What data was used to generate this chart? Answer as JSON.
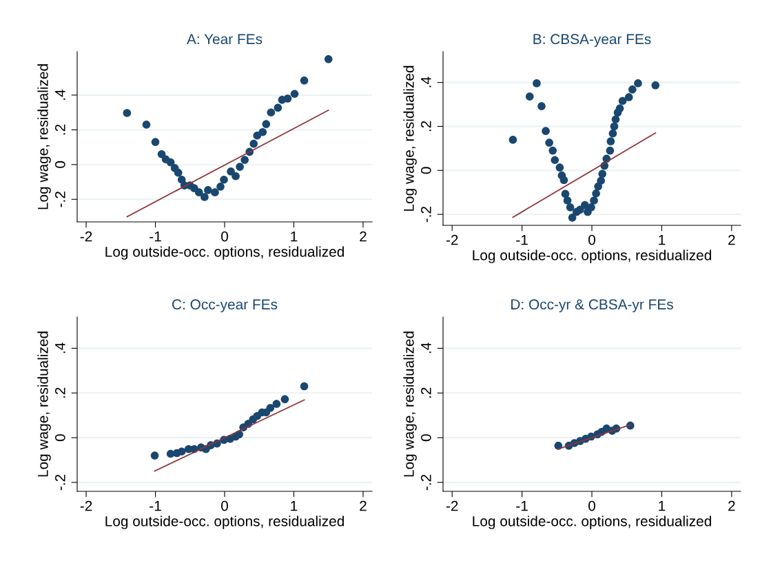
{
  "chart_data": [
    {
      "type": "scatter",
      "title": "A: Year FEs",
      "xlabel": "Log outside-occ. options, residualized",
      "ylabel": "Log wage, residualized",
      "xlim": [
        -2.13,
        2.13
      ],
      "ylim": [
        -0.33,
        0.65
      ],
      "xticks": [
        -2,
        -1,
        0,
        1,
        2
      ],
      "yticks": [
        {
          "value": -0.2,
          "label": "-.2"
        },
        0,
        {
          "value": 0.2,
          "label": ".2"
        },
        {
          "value": 0.4,
          "label": ".4"
        }
      ],
      "grid": "y",
      "legend": false,
      "marker": "circle",
      "series": [
        {
          "color": "#1a476f",
          "x": [
            -1.41,
            -1.13,
            -1.0,
            -0.91,
            -0.85,
            -0.78,
            -0.72,
            -0.67,
            -0.62,
            -0.58,
            -0.5,
            -0.44,
            -0.37,
            -0.29,
            -0.24,
            -0.14,
            -0.06,
            -0.01,
            0.09,
            0.16,
            0.22,
            0.29,
            0.36,
            0.42,
            0.47,
            0.55,
            0.6,
            0.67,
            0.77,
            0.83,
            0.91,
            1.01,
            1.15,
            1.5
          ],
          "values": [
            0.297,
            0.23,
            0.13,
            0.06,
            0.03,
            0.013,
            -0.02,
            -0.047,
            -0.087,
            -0.12,
            -0.12,
            -0.136,
            -0.16,
            -0.187,
            -0.147,
            -0.16,
            -0.127,
            -0.087,
            -0.04,
            -0.067,
            -0.013,
            0.027,
            0.073,
            0.12,
            0.167,
            0.187,
            0.233,
            0.3,
            0.327,
            0.373,
            0.38,
            0.407,
            0.484,
            0.607
          ]
        },
        {
          "type": "line",
          "color": "#90353b",
          "marker": "none",
          "x": [
            -1.41,
            1.5
          ],
          "values": [
            -0.3,
            0.313
          ]
        }
      ]
    },
    {
      "type": "scatter",
      "title": "B: CBSA-year FEs",
      "xlabel": "Log outside-occ. options, residualized",
      "ylabel": "Log wage, residualized",
      "xlim": [
        -2.13,
        2.13
      ],
      "ylim": [
        -0.25,
        0.54
      ],
      "xticks": [
        -2,
        -1,
        0,
        1,
        2
      ],
      "yticks": [
        {
          "value": -0.2,
          "label": "-.2"
        },
        0,
        {
          "value": 0.2,
          "label": ".2"
        },
        {
          "value": 0.4,
          "label": ".4"
        }
      ],
      "grid": "y",
      "legend": false,
      "marker": "circle",
      "series": [
        {
          "color": "#1a476f",
          "x": [
            -1.13,
            -0.89,
            -0.79,
            -0.72,
            -0.66,
            -0.61,
            -0.56,
            -0.53,
            -0.46,
            -0.43,
            -0.4,
            -0.38,
            -0.35,
            -0.31,
            -0.28,
            -0.22,
            -0.17,
            -0.1,
            -0.06,
            -0.01,
            0.03,
            0.06,
            0.09,
            0.13,
            0.15,
            0.18,
            0.21,
            0.26,
            0.27,
            0.3,
            0.32,
            0.34,
            0.37,
            0.4,
            0.44,
            0.53,
            0.58,
            0.66,
            0.91
          ],
          "values": [
            0.139,
            0.336,
            0.396,
            0.292,
            0.179,
            0.126,
            0.09,
            0.047,
            0.013,
            -0.023,
            -0.044,
            -0.107,
            -0.137,
            -0.168,
            -0.215,
            -0.189,
            -0.179,
            -0.158,
            -0.189,
            -0.168,
            -0.137,
            -0.105,
            -0.073,
            -0.047,
            -0.016,
            0.021,
            0.053,
            0.09,
            0.132,
            0.168,
            0.2,
            0.232,
            0.263,
            0.282,
            0.316,
            0.333,
            0.368,
            0.396,
            0.387
          ]
        },
        {
          "type": "line",
          "color": "#90353b",
          "marker": "none",
          "x": [
            -1.13,
            0.91
          ],
          "values": [
            -0.213,
            0.17
          ]
        }
      ]
    },
    {
      "type": "scatter",
      "title": "C: Occ-year FEs",
      "xlabel": "Log outside-occ. options, residualized",
      "ylabel": "Log wage, residualized",
      "xlim": [
        -2.13,
        2.13
      ],
      "ylim": [
        -0.24,
        0.54
      ],
      "xticks": [
        -2,
        -1,
        0,
        1,
        2
      ],
      "yticks": [
        {
          "value": -0.2,
          "label": "-.2"
        },
        0,
        {
          "value": 0.2,
          "label": ".2"
        },
        {
          "value": 0.4,
          "label": ".4"
        }
      ],
      "grid": "y",
      "legend": false,
      "marker": "circle",
      "series": [
        {
          "color": "#1a476f",
          "x": [
            -1.01,
            -0.78,
            -0.69,
            -0.62,
            -0.52,
            -0.44,
            -0.34,
            -0.27,
            -0.2,
            -0.11,
            -0.01,
            0.08,
            0.16,
            0.21,
            0.27,
            0.34,
            0.41,
            0.47,
            0.54,
            0.6,
            0.66,
            0.75,
            0.87,
            1.15
          ],
          "values": [
            -0.08,
            -0.072,
            -0.069,
            -0.062,
            -0.051,
            -0.051,
            -0.044,
            -0.051,
            -0.034,
            -0.026,
            -0.01,
            -0.005,
            0.005,
            0.015,
            0.046,
            0.062,
            0.082,
            0.097,
            0.113,
            0.113,
            0.133,
            0.151,
            0.172,
            0.23
          ]
        },
        {
          "type": "line",
          "color": "#90353b",
          "marker": "none",
          "x": [
            -1.01,
            1.15
          ],
          "values": [
            -0.149,
            0.169
          ]
        }
      ]
    },
    {
      "type": "scatter",
      "title": "D: Occ-yr & CBSA-yr FEs",
      "xlabel": "Log outside-occ. options, residualized",
      "ylabel": "Log wage, residualized",
      "xlim": [
        -2.13,
        2.13
      ],
      "ylim": [
        -0.24,
        0.54
      ],
      "xticks": [
        -2,
        -1,
        0,
        1,
        2
      ],
      "yticks": [
        {
          "value": -0.2,
          "label": "-.2"
        },
        0,
        {
          "value": 0.2,
          "label": ".2"
        },
        {
          "value": 0.4,
          "label": ".4"
        }
      ],
      "grid": "y",
      "legend": false,
      "marker": "circle",
      "series": [
        {
          "color": "#1a476f",
          "x": [
            -0.48,
            -0.33,
            -0.25,
            -0.17,
            -0.09,
            -0.01,
            0.08,
            0.14,
            0.21,
            0.29,
            0.35,
            0.55
          ],
          "values": [
            -0.036,
            -0.036,
            -0.024,
            -0.015,
            -0.005,
            0.005,
            0.015,
            0.026,
            0.041,
            0.031,
            0.041,
            0.054
          ]
        },
        {
          "type": "line",
          "color": "#90353b",
          "marker": "none",
          "x": [
            -0.48,
            0.55
          ],
          "values": [
            -0.051,
            0.058
          ]
        }
      ]
    }
  ]
}
